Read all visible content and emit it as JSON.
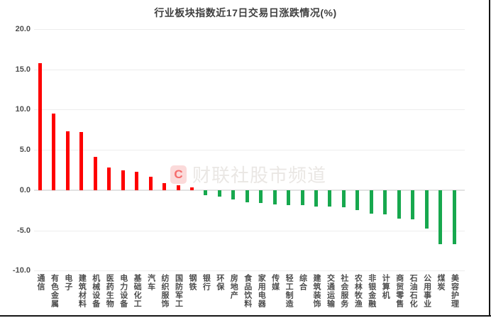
{
  "watermark": {
    "logo_letter": "C",
    "text": "财联社股市频道"
  },
  "chart_data": {
    "type": "bar",
    "title": "行业板块指数近17日交易日涨跌情况(%)",
    "categories": [
      "通信",
      "有色金属",
      "电子",
      "建筑材料",
      "机械设备",
      "医药生物",
      "电力设备",
      "基础化工",
      "汽车",
      "纺织服饰",
      "国防军工",
      "钢铁",
      "银行",
      "环保",
      "房地产",
      "食品饮料",
      "家用电器",
      "传媒",
      "轻工制造",
      "综合",
      "建筑装饰",
      "交通运输",
      "社会服务",
      "农林牧渔",
      "非银金融",
      "计算机",
      "商贸零售",
      "石油石化",
      "公用事业",
      "煤炭",
      "美容护理"
    ],
    "values": [
      15.8,
      9.5,
      7.3,
      7.2,
      4.1,
      2.8,
      2.5,
      2.3,
      1.7,
      0.9,
      0.6,
      0.3,
      -0.6,
      -0.8,
      -1.2,
      -1.5,
      -1.6,
      -1.8,
      -1.9,
      -1.9,
      -2.0,
      -2.0,
      -2.1,
      -2.5,
      -2.9,
      -3.0,
      -3.5,
      -3.6,
      -4.8,
      -6.7,
      -6.7
    ],
    "xlabel": "",
    "ylabel": "",
    "ylim": [
      -10,
      20
    ],
    "yticks": [
      20,
      15,
      10,
      5,
      0,
      -5,
      -10
    ],
    "ytick_labels": [
      "20.0",
      "15.0",
      "10.0",
      "5.0",
      "0.0",
      "-5.0",
      "-10.0"
    ],
    "grid": true,
    "legend": false,
    "positive_color": "#fe0000",
    "negative_color": "#17a84e"
  }
}
